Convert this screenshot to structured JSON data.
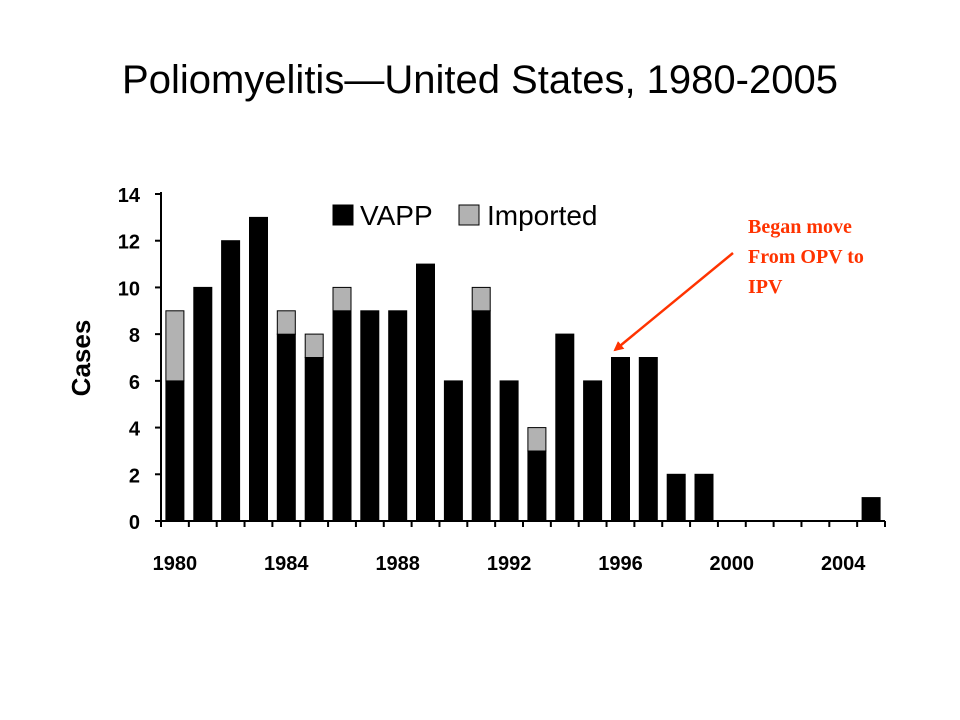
{
  "slide_title": "Poliomyelitis—United States, 1980-2005",
  "chart_data": {
    "type": "bar",
    "stacked": true,
    "title": "",
    "xlabel": "",
    "ylabel": "Cases",
    "ylim": [
      0,
      14
    ],
    "yticks": [
      0,
      2,
      4,
      6,
      8,
      10,
      12,
      14
    ],
    "x": [
      1980,
      1981,
      1982,
      1983,
      1984,
      1985,
      1986,
      1987,
      1988,
      1989,
      1990,
      1991,
      1992,
      1993,
      1994,
      1995,
      1996,
      1997,
      1998,
      1999,
      2000,
      2001,
      2002,
      2003,
      2004,
      2005
    ],
    "xtick_labels": [
      "1980",
      "1984",
      "1988",
      "1992",
      "1996",
      "2000",
      "2004"
    ],
    "series": [
      {
        "name": "VAPP",
        "color": "#000000",
        "values": [
          6,
          10,
          12,
          13,
          8,
          7,
          9,
          9,
          9,
          11,
          6,
          9,
          6,
          3,
          8,
          6,
          7,
          7,
          2,
          2,
          0,
          0,
          0,
          0,
          0,
          1
        ]
      },
      {
        "name": "Imported",
        "color": "#b2b2b2",
        "values": [
          3,
          0,
          0,
          0,
          1,
          1,
          1,
          0,
          0,
          0,
          0,
          1,
          0,
          1,
          0,
          0,
          0,
          0,
          0,
          0,
          0,
          0,
          0,
          0,
          0,
          0
        ]
      }
    ],
    "legend_position": "top",
    "grid": false,
    "annotation": {
      "lines": [
        "Began move",
        "From OPV to",
        "IPV"
      ],
      "color": "#ff3300",
      "points_to": 1996
    }
  }
}
